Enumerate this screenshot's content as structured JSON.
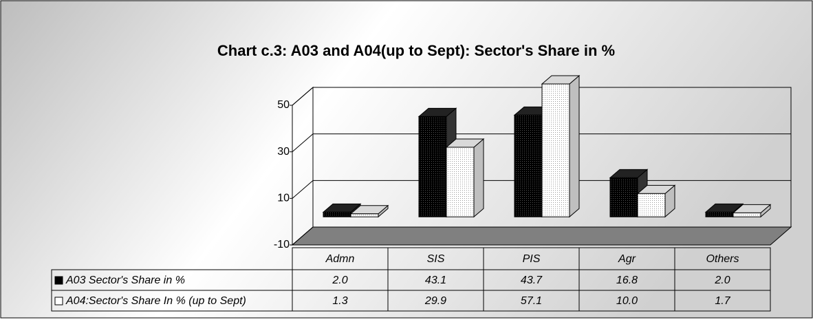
{
  "chart_data": {
    "type": "bar3d",
    "title": "Chart c.3: A03 and A04(up to Sept): Sector's Share in %",
    "categories": [
      "Admn",
      "SIS",
      "PIS",
      "Agr",
      "Others"
    ],
    "series": [
      {
        "name": "A03 Sector's Share in %",
        "color": "#000000",
        "values": [
          2.0,
          43.1,
          43.7,
          16.8,
          2.0
        ],
        "value_labels": [
          "2.0",
          "43.1",
          "43.7",
          "16.8",
          "2.0"
        ]
      },
      {
        "name": "A04:Sector's Share In % (up to Sept)",
        "color": "#ffffff",
        "values": [
          1.3,
          29.9,
          57.1,
          10.0,
          1.7
        ],
        "value_labels": [
          "1.3",
          "29.9",
          "57.1",
          "10.0",
          "1.7"
        ]
      }
    ],
    "ylim": [
      -10,
      50
    ],
    "yticks": [
      -10,
      10,
      30,
      50
    ],
    "grid": true
  }
}
